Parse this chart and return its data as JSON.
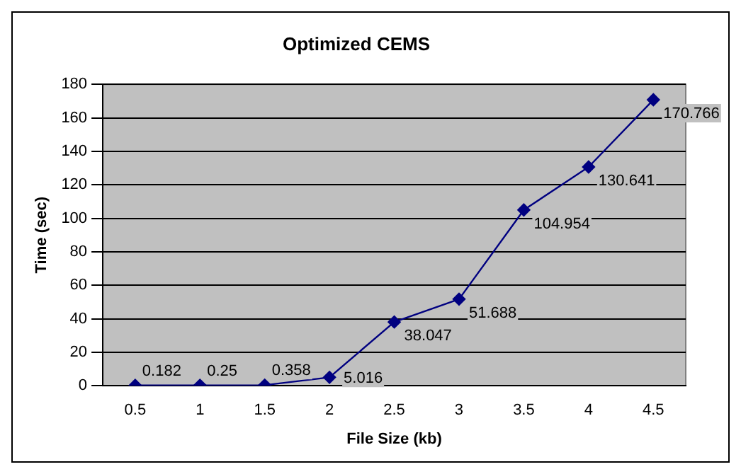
{
  "chart_data": {
    "type": "line",
    "title": "Optimized CEMS",
    "xlabel": "File Size (kb)",
    "ylabel": "Time (sec)",
    "categories": [
      "0.5",
      "1",
      "1.5",
      "2",
      "2.5",
      "3",
      "3.5",
      "4",
      "4.5"
    ],
    "series": [
      {
        "color": "#000080",
        "values": [
          0.182,
          0.25,
          0.358,
          5.016,
          38.047,
          51.688,
          104.954,
          130.641,
          170.766
        ],
        "value_labels": [
          "0.182",
          "0.25",
          "0.358",
          "5.016",
          "38.047",
          "51.688",
          "104.954",
          "130.641",
          "170.766"
        ]
      }
    ],
    "ylim": [
      0,
      180
    ],
    "yticks": [
      0,
      20,
      40,
      60,
      80,
      100,
      120,
      140,
      160,
      180
    ],
    "grid": "y",
    "legend": false,
    "marker": "diamond",
    "line_style": "solid"
  }
}
